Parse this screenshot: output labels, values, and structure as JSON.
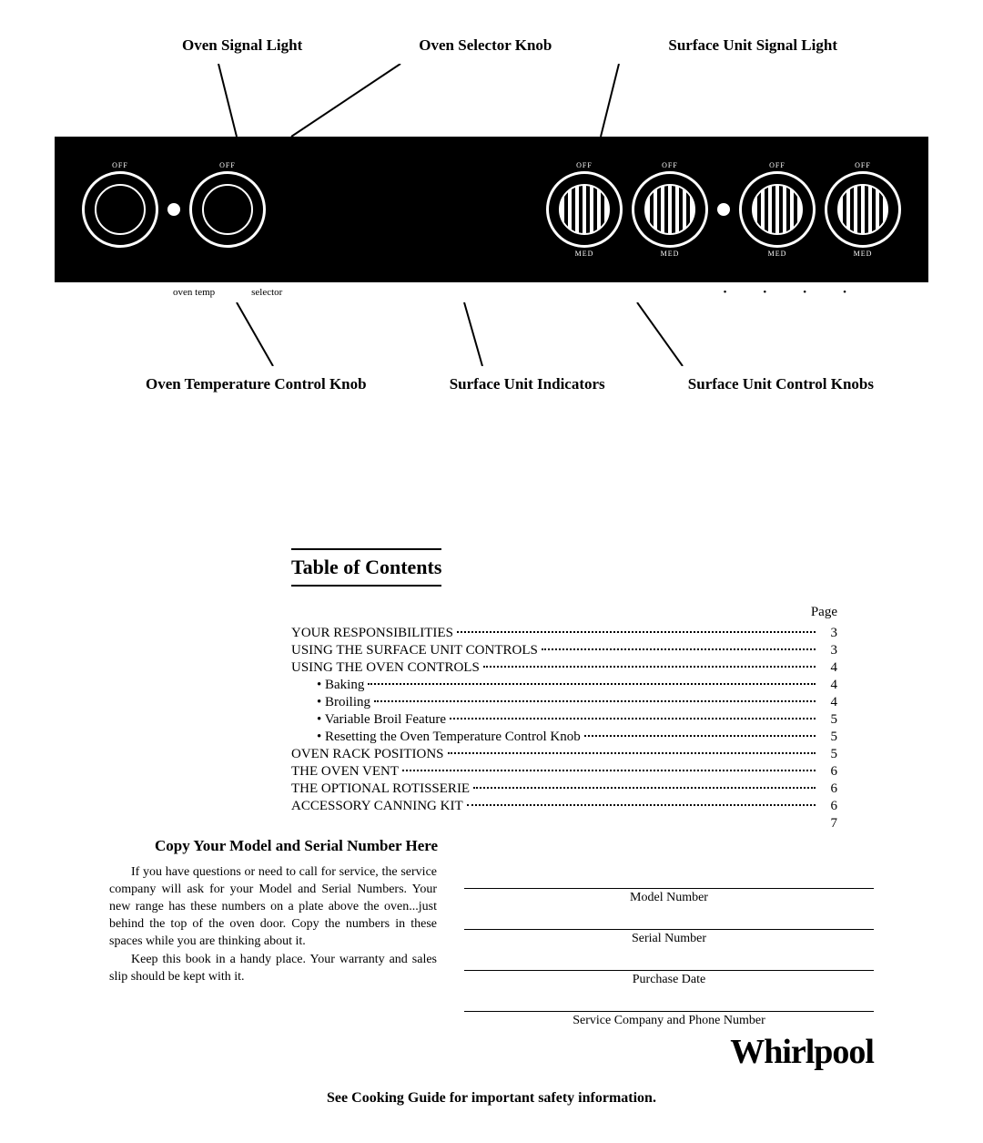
{
  "top_labels": {
    "oven_signal": "Oven Signal Light",
    "oven_selector": "Oven Selector Knob",
    "surface_signal": "Surface Unit Signal Light"
  },
  "knob_text": {
    "off": "OFF",
    "med": "MED"
  },
  "indicator": {
    "oven_temp": "oven temp",
    "selector": "selector"
  },
  "bottom_labels": {
    "oven_temp_knob": "Oven Temperature Control Knob",
    "surface_indicators": "Surface Unit Indicators",
    "surface_knobs": "Surface Unit Control Knobs"
  },
  "toc": {
    "title": "Table of Contents",
    "page_label": "Page",
    "items": [
      {
        "label": "YOUR RESPONSIBILITIES",
        "page": "3",
        "sub": false
      },
      {
        "label": "USING THE SURFACE UNIT CONTROLS",
        "page": "3",
        "sub": false
      },
      {
        "label": "USING THE OVEN CONTROLS",
        "page": "4",
        "sub": false
      },
      {
        "label": "Baking",
        "page": "4",
        "sub": true
      },
      {
        "label": "Broiling",
        "page": "4",
        "sub": true
      },
      {
        "label": "Variable Broil Feature",
        "page": "5",
        "sub": true
      },
      {
        "label": "Resetting the Oven Temperature Control Knob",
        "page": "5",
        "sub": true
      },
      {
        "label": "OVEN RACK POSITIONS",
        "page": "5",
        "sub": false
      },
      {
        "label": "THE OVEN VENT",
        "page": "6",
        "sub": false
      },
      {
        "label": "THE OPTIONAL ROTISSERIE",
        "page": "6",
        "sub": false
      },
      {
        "label": "ACCESSORY CANNING KIT",
        "page": "6",
        "sub": false
      }
    ],
    "trailing_page": "7"
  },
  "copy": {
    "title": "Copy Your Model and Serial Number Here",
    "p1": "If you have questions or need to call for service, the service company will ask for your Model and Serial Numbers. Your new range has these numbers on a plate above the oven...just behind the top of the oven door. Copy the numbers in these spaces while you are thinking about it.",
    "p2": "Keep this book in a handy place. Your warranty and sales slip should be kept with it.",
    "fields": {
      "model": "Model Number",
      "serial": "Serial Number",
      "purchase": "Purchase Date",
      "service": "Service Company and Phone Number"
    }
  },
  "brand": "Whirlpool",
  "footer": "See Cooking Guide for important safety information."
}
